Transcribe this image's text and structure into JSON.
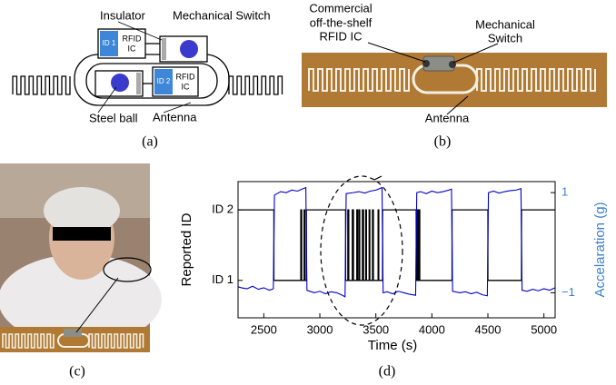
{
  "figure": {
    "a": {
      "insulator": "Insulator",
      "mechanical_switch": "Mechanical Switch",
      "id1": "ID 1",
      "id2": "ID 2",
      "rfid_1": "RFID",
      "ic_1": "IC",
      "rfid_2": "RFID",
      "ic_2": "IC",
      "steel_ball": "Steel ball",
      "antenna": "Antenna",
      "caption": "(a)"
    },
    "b": {
      "cots_lines": [
        "Commercial",
        "off-the-shelf",
        "RFID IC"
      ],
      "switch_lines": [
        "Mechanical",
        "Switch"
      ],
      "antenna": "Antenna",
      "caption": "(b)"
    },
    "c": {
      "caption": "(c)"
    },
    "d": {
      "caption": "(d)"
    }
  },
  "chart_data": {
    "type": "line",
    "xlabel": "Time (s)",
    "ylabel": "Reported ID",
    "y2label": "Accelaration (g)",
    "xlim": [
      2270,
      5100
    ],
    "xticks": [
      2500,
      3000,
      3500,
      4000,
      4500,
      5000
    ],
    "ylim": [
      0.47,
      2.4
    ],
    "yticks": [
      {
        "value": 1,
        "label": "ID 1"
      },
      {
        "value": 2,
        "label": "ID 2"
      }
    ],
    "y2lim": [
      -1.5,
      1.22
    ],
    "y2ticks": [
      {
        "value": -1,
        "label": "−1"
      },
      1
    ],
    "y2color": "#3a7fd0",
    "series": [
      {
        "color": "#000000",
        "x": [
          2270,
          2590,
          2590,
          2830,
          2830,
          2838,
          2838,
          2860,
          2860,
          2866,
          2866,
          2880,
          2880,
          3230,
          3230,
          3250,
          3250,
          3258,
          3258,
          3290,
          3290,
          3300,
          3300,
          3330,
          3330,
          3338,
          3338,
          3350,
          3350,
          3356,
          3356,
          3380,
          3380,
          3390,
          3390,
          3410,
          3410,
          3416,
          3416,
          3440,
          3440,
          3446,
          3446,
          3470,
          3470,
          3478,
          3478,
          3520,
          3520,
          3526,
          3526,
          3560,
          3560,
          3860,
          3860,
          3870,
          3870,
          3876,
          3876,
          3885,
          3885,
          3892,
          3892,
          4180,
          4180,
          4500,
          4500,
          4800,
          4800,
          5100
        ],
        "values": [
          2,
          2,
          1,
          1,
          2,
          2,
          1,
          1,
          2,
          2,
          1,
          1,
          2,
          2,
          1,
          1,
          2,
          2,
          1,
          1,
          2,
          2,
          1,
          1,
          2,
          2,
          1,
          1,
          2,
          2,
          1,
          1,
          2,
          2,
          1,
          1,
          2,
          2,
          1,
          1,
          2,
          2,
          1,
          1,
          2,
          2,
          1,
          1,
          2,
          2,
          1,
          1,
          2,
          2,
          1,
          1,
          2,
          2,
          1,
          1,
          2,
          2,
          1,
          1,
          2,
          2,
          1,
          1,
          2,
          2
        ]
      },
      {
        "color": "#0000cc",
        "axis": "y2",
        "x": [
          2270,
          2300,
          2350,
          2400,
          2450,
          2500,
          2550,
          2585,
          2595,
          2650,
          2700,
          2750,
          2800,
          2850,
          2875,
          2885,
          2950,
          3000,
          3050,
          3100,
          3150,
          3200,
          3225,
          3235,
          3300,
          3350,
          3400,
          3450,
          3500,
          3555,
          3565,
          3600,
          3650,
          3700,
          3750,
          3800,
          3855,
          3865,
          3900,
          3950,
          4000,
          4050,
          4100,
          4150,
          4175,
          4185,
          4250,
          4300,
          4350,
          4400,
          4450,
          4495,
          4505,
          4550,
          4600,
          4650,
          4700,
          4750,
          4795,
          4805,
          4850,
          4900,
          4950,
          5000,
          5050,
          5100
        ],
        "values": [
          -0.88,
          -0.9,
          -0.92,
          -0.87,
          -0.93,
          -0.9,
          -0.95,
          -0.92,
          0.95,
          1.02,
          1.0,
          1.05,
          1.03,
          1.08,
          1.1,
          -0.95,
          -1.0,
          -0.97,
          -1.02,
          -0.98,
          -1.0,
          -1.05,
          -1.08,
          0.98,
          1.0,
          1.02,
          0.99,
          1.03,
          1.05,
          1.1,
          -1.0,
          -0.98,
          -1.02,
          -0.97,
          -1.0,
          -1.03,
          -1.05,
          1.0,
          1.02,
          0.98,
          1.03,
          1.0,
          1.02,
          1.05,
          1.07,
          -0.97,
          -1.0,
          -0.98,
          -1.02,
          -0.99,
          -1.04,
          -1.06,
          1.0,
          1.03,
          0.99,
          1.02,
          1.04,
          1.05,
          1.08,
          -0.95,
          -0.97,
          -0.93,
          -0.96,
          -0.92,
          -0.95,
          -0.9
        ]
      }
    ]
  }
}
